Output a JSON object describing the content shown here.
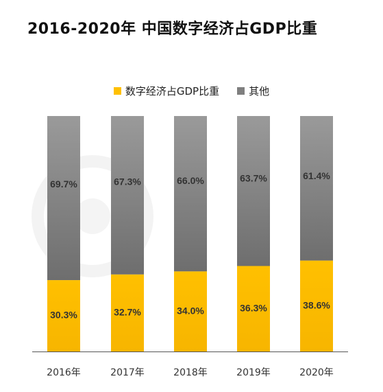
{
  "title": "2016-2020年 中国数字经济占GDP比重",
  "legend": {
    "digital_label": "数字经济占GDP比重",
    "other_label": "其他"
  },
  "colors": {
    "digital": "#FFC000",
    "other": "#7F7F7F",
    "axis": "#555555"
  },
  "chart_data": {
    "type": "bar",
    "stacked": true,
    "percent": true,
    "categories": [
      "2016年",
      "2017年",
      "2018年",
      "2019年",
      "2020年"
    ],
    "series": [
      {
        "name": "数字经济占GDP比重",
        "values": [
          30.3,
          32.7,
          34.0,
          36.3,
          38.6
        ],
        "labels": [
          "30.3%",
          "32.7%",
          "34.0%",
          "36.3%",
          "38.6%"
        ]
      },
      {
        "name": "其他",
        "values": [
          69.7,
          67.3,
          66.0,
          63.7,
          61.4
        ],
        "labels": [
          "69.7%",
          "67.3%",
          "66.0%",
          "63.7%",
          "61.4%"
        ]
      }
    ],
    "ylim": [
      0,
      100
    ],
    "legend_position": "top-center",
    "grid": false
  }
}
